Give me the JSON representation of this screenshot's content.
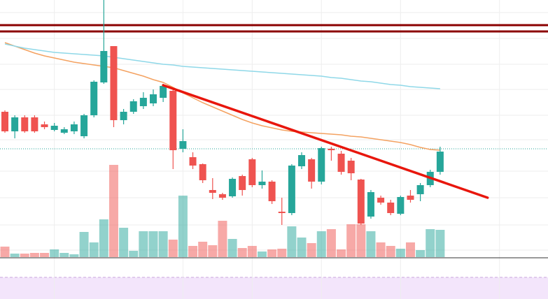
{
  "chart_data": {
    "type": "candlestick",
    "ylim": [
      0,
      368
    ],
    "vlim": [
      0,
      184
    ],
    "grid": true,
    "grid_y": [
      350,
      313,
      276,
      240,
      203,
      168,
      123,
      85,
      46,
      10
    ],
    "grid_x": [
      5,
      18,
      25,
      32,
      40,
      50
    ],
    "xlim": [
      0,
      55.4
    ],
    "up_color": "#26a69a",
    "down_color": "#ef5350",
    "open": [
      208,
      180,
      200,
      200,
      190,
      182,
      178,
      180,
      173,
      203,
      250,
      302,
      196,
      208,
      216,
      220,
      228,
      238,
      155,
      143,
      133,
      96,
      90,
      87,
      116,
      140,
      103,
      108,
      65,
      63,
      130,
      140,
      108,
      155,
      148,
      138,
      111,
      58,
      85,
      78,
      62,
      88,
      90,
      103,
      122
    ],
    "high": [
      210,
      203,
      203,
      203,
      194,
      192,
      186,
      194,
      205,
      253,
      368,
      302,
      212,
      226,
      236,
      240,
      248,
      240,
      183,
      150,
      134,
      113,
      92,
      114,
      118,
      142,
      124,
      110,
      85,
      133,
      150,
      142,
      158,
      158,
      152,
      142,
      112,
      96,
      88,
      82,
      88,
      96,
      106,
      125,
      158
    ],
    "low": [
      178,
      170,
      178,
      178,
      183,
      180,
      176,
      176,
      170,
      200,
      248,
      186,
      190,
      205,
      212,
      216,
      222,
      126,
      150,
      126,
      106,
      83,
      82,
      85,
      88,
      100,
      98,
      76,
      46,
      60,
      126,
      98,
      104,
      138,
      118,
      110,
      46,
      55,
      75,
      60,
      60,
      78,
      80,
      100,
      118
    ],
    "close": [
      180,
      200,
      180,
      180,
      186,
      188,
      183,
      190,
      203,
      251,
      295,
      196,
      208,
      223,
      228,
      233,
      245,
      153,
      166,
      131,
      110,
      92,
      85,
      112,
      96,
      103,
      108,
      80,
      63,
      131,
      146,
      108,
      156,
      153,
      122,
      120,
      48,
      93,
      78,
      63,
      86,
      82,
      103,
      122,
      151
    ],
    "volume": [
      15,
      5,
      5,
      6,
      6,
      11,
      6,
      4,
      36,
      21,
      54,
      132,
      42,
      9,
      37,
      37,
      37,
      25,
      88,
      16,
      22,
      17,
      52,
      26,
      13,
      16,
      8,
      11,
      12,
      44,
      28,
      20,
      37,
      40,
      11,
      47,
      47,
      37,
      21,
      16,
      12,
      21,
      10,
      40,
      39
    ],
    "ma_lines": [
      {
        "color": "#f4a261",
        "values": [
          307,
          302,
          297,
          292,
          288,
          285,
          282,
          279,
          277,
          275,
          273,
          271,
          267,
          263,
          259,
          254,
          250,
          243,
          235,
          228,
          221,
          215,
          209,
          203,
          197,
          192,
          188,
          185,
          182,
          180,
          179,
          178,
          177,
          176,
          175,
          173,
          172,
          170,
          168,
          166,
          164,
          161,
          157,
          154,
          153
        ]
      },
      {
        "color": "#8fd8e8",
        "values": [
          305,
          302,
          299,
          297,
          295,
          293,
          292,
          291,
          290,
          289,
          288,
          286,
          284,
          282,
          280,
          278,
          276,
          275,
          273,
          272,
          271,
          270,
          269,
          268,
          267,
          266,
          265,
          264,
          263,
          262,
          261,
          260,
          259,
          257,
          256,
          254,
          252,
          251,
          249,
          247,
          246,
          244,
          243,
          242,
          241
        ]
      }
    ],
    "h_lines": [
      {
        "value": 332,
        "color": "#8b0000"
      },
      {
        "value": 323,
        "color": "#8b0000"
      }
    ],
    "price_line": {
      "value": 155,
      "color": "#26a69a"
    },
    "trendline": {
      "x": [
        16,
        48.8
      ],
      "y": [
        246,
        85
      ],
      "color": "#e8160c"
    }
  }
}
